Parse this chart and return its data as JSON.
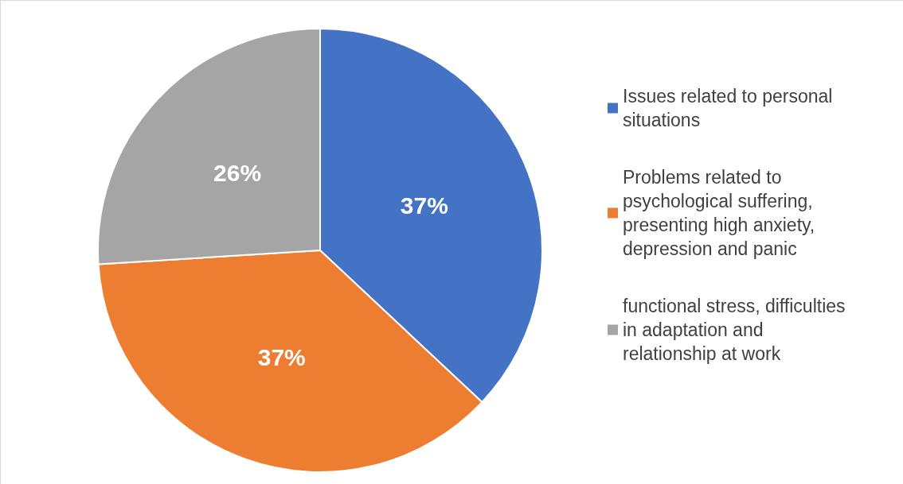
{
  "chart_data": {
    "type": "pie",
    "categories": [
      "Issues related to personal situations",
      "Problems related to psychological suffering, presenting high anxiety, depression and panic",
      "functional stress, difficulties in adaptation and relationship at work"
    ],
    "values": [
      37,
      37,
      26
    ],
    "colors": [
      "#4472c4",
      "#ed7d31",
      "#a5a5a5"
    ],
    "value_labels": [
      "37%",
      "37%",
      "26%"
    ],
    "legend": "right"
  }
}
